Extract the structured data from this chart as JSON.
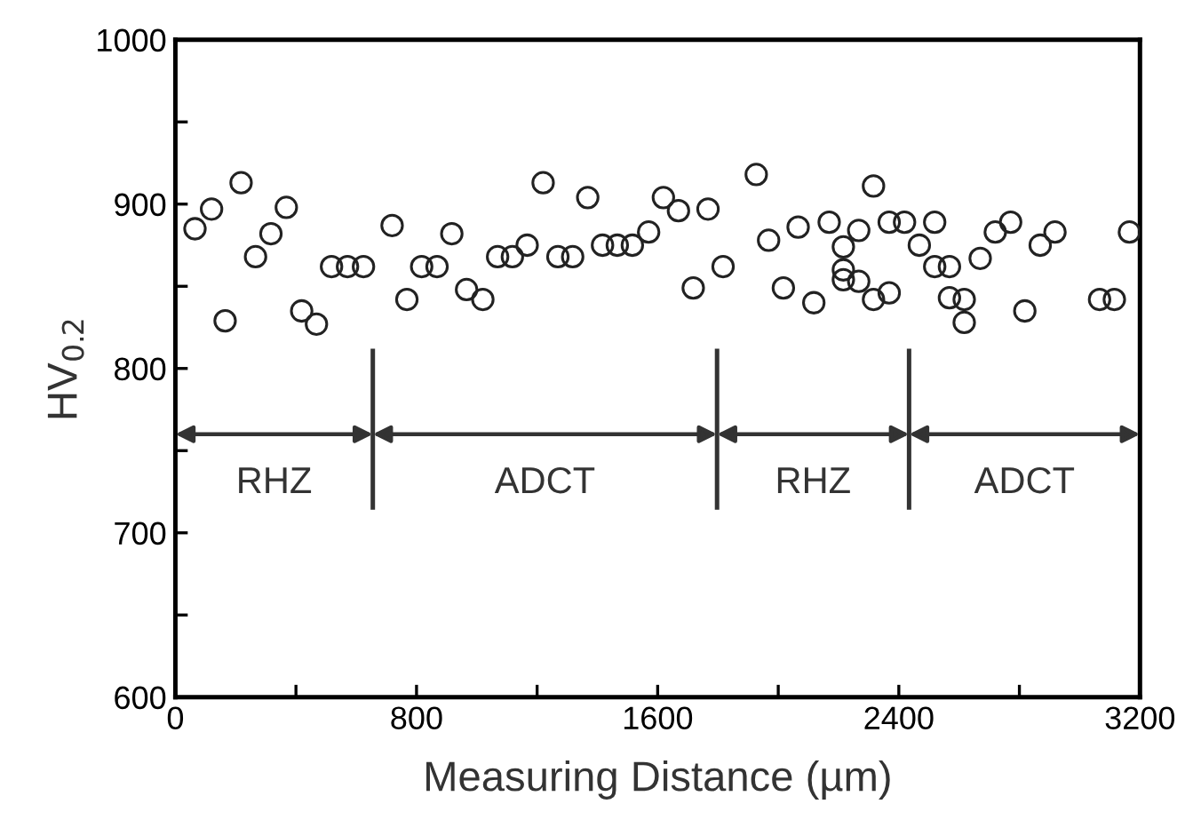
{
  "chart_data": {
    "type": "scatter",
    "xlabel": "Measuring Distance (µm)",
    "ylabel": "HV$_{0.2}$",
    "xlim": [
      0,
      3200
    ],
    "ylim": [
      600,
      1000
    ],
    "xticks": [
      0,
      {
        "value": 400,
        "label": null
      },
      800,
      {
        "value": 1200,
        "label": null
      },
      1600,
      {
        "value": 2000,
        "label": null
      },
      2400,
      {
        "value": 2800,
        "label": null
      },
      3200
    ],
    "yticks": [
      600,
      {
        "value": 650,
        "label": null
      },
      700,
      {
        "value": 750,
        "label": null
      },
      800,
      {
        "value": 850,
        "label": null
      },
      900,
      {
        "value": 950,
        "label": null
      },
      1000
    ],
    "marker": "circle",
    "grid": false,
    "legend": false,
    "ref_lines": [
      {
        "axis": "x",
        "value": 655,
        "color": "#333333"
      },
      {
        "axis": "x",
        "value": 1797,
        "color": "#333333"
      },
      {
        "axis": "x",
        "value": 2434,
        "color": "#333333"
      }
    ],
    "annotations": [
      "RHZ",
      "ADCT",
      "RHZ",
      "ADCT"
    ],
    "series": [
      {
        "color": "#222222",
        "x": [
          65,
          120,
          165,
          218,
          266,
          317,
          368,
          419,
          468,
          518,
          571,
          624,
          719,
          768,
          817,
          868,
          917,
          966,
          1020,
          1069,
          1118,
          1167,
          1220,
          1269,
          1318,
          1368,
          1417,
          1466,
          1516,
          1570,
          1619,
          1669,
          1718,
          1767,
          1817,
          1927,
          1968,
          2017,
          2066,
          2118,
          2169,
          2216,
          2216,
          2216,
          2267,
          2267,
          2316,
          2316,
          2368,
          2368,
          2419,
          2468,
          2519,
          2519,
          2568,
          2568,
          2617,
          2617,
          2670,
          2720,
          2771,
          2818,
          2869,
          2918,
          3066,
          3115,
          3165
        ],
        "values": [
          885,
          897,
          829,
          913,
          868,
          882,
          898,
          835,
          827,
          862,
          862,
          862,
          887,
          842,
          862,
          862,
          882,
          848,
          842,
          868,
          868,
          875,
          913,
          868,
          868,
          904,
          875,
          875,
          875,
          883,
          904,
          896,
          849,
          897,
          862,
          918,
          878,
          849,
          886,
          840,
          889,
          874,
          860,
          854,
          884,
          853,
          911,
          842,
          846,
          889,
          889,
          875,
          889,
          862,
          862,
          843,
          842,
          828,
          867,
          883,
          889,
          835,
          875,
          883,
          842,
          842,
          883
        ]
      }
    ]
  }
}
